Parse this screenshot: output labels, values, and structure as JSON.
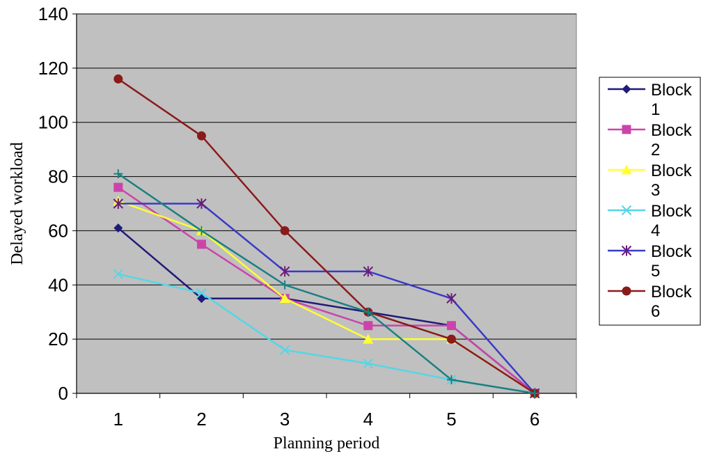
{
  "chart_data": {
    "type": "line",
    "title": "",
    "xlabel": "Planning period",
    "ylabel": "Delayed workload",
    "x": [
      1,
      2,
      3,
      4,
      5,
      6
    ],
    "ylim": [
      0,
      140
    ],
    "yticks": [
      0,
      20,
      40,
      60,
      80,
      100,
      120,
      140
    ],
    "grid": true,
    "legend_position": "right",
    "plot_background": "#c0c0c0",
    "series": [
      {
        "name": [
          "Block",
          "1"
        ],
        "values": [
          61,
          35,
          35,
          30,
          25,
          0
        ],
        "color": "#1f1a7a",
        "marker": "diamond"
      },
      {
        "name": [
          "Block",
          "2"
        ],
        "values": [
          76,
          55,
          35,
          25,
          25,
          0
        ],
        "color": "#cc44aa",
        "marker": "square"
      },
      {
        "name": [
          "Block",
          "3"
        ],
        "values": [
          71,
          60,
          35,
          20,
          20,
          0
        ],
        "color": "#ffff33",
        "marker": "triangle"
      },
      {
        "name": [
          "Block",
          "4"
        ],
        "values": [
          44,
          37,
          16,
          11,
          5,
          0
        ],
        "color": "#55d6e6",
        "marker": "x"
      },
      {
        "name": [
          "Block",
          "5"
        ],
        "values": [
          70,
          70,
          45,
          45,
          35,
          0
        ],
        "color": "#6a1a7a",
        "line_color": "#3a3ac8",
        "marker": "asterisk"
      },
      {
        "name": [
          "Block",
          "6"
        ],
        "values": [
          116,
          95,
          60,
          30,
          20,
          0
        ],
        "color": "#8b1a1a",
        "marker": "circle"
      },
      {
        "name": null,
        "values": [
          81,
          60,
          40,
          30,
          5,
          0
        ],
        "color": "#1a8080",
        "marker": "plus"
      }
    ]
  }
}
